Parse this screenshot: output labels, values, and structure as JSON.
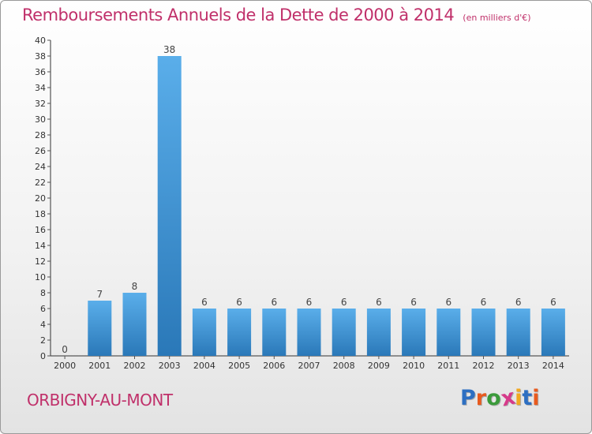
{
  "header": {
    "title": "Remboursements Annuels de la Dette de 2000 à 2014",
    "subtitle": "(en milliers d'€)"
  },
  "footer": {
    "commune": "ORBIGNY-AU-MONT",
    "logo_text": "Proxiti",
    "logo_colors": [
      "#2d6fc2",
      "#e85a1e",
      "#3a9a3a",
      "#d63a8a",
      "#f1a820",
      "#2d6fc2",
      "#e85a1e"
    ]
  },
  "colors": {
    "accent": "#c0306a",
    "bar_light": "#5aaeea",
    "bar_dark": "#2a78b8",
    "axis": "#333333",
    "grid_tick": "#555555"
  },
  "chart_data": {
    "type": "bar",
    "categories": [
      "2000",
      "2001",
      "2002",
      "2003",
      "2004",
      "2005",
      "2006",
      "2007",
      "2008",
      "2009",
      "2010",
      "2011",
      "2012",
      "2013",
      "2014"
    ],
    "values": [
      0,
      7,
      8,
      38,
      6,
      6,
      6,
      6,
      6,
      6,
      6,
      6,
      6,
      6,
      6
    ],
    "data_labels": [
      "0",
      "7",
      "8",
      "38",
      "6",
      "6",
      "6",
      "6",
      "6",
      "6",
      "6",
      "6",
      "6",
      "6",
      "6"
    ],
    "ylim": [
      0,
      40
    ],
    "yticks": [
      0,
      2,
      4,
      6,
      8,
      10,
      12,
      14,
      16,
      18,
      20,
      22,
      24,
      26,
      28,
      30,
      32,
      34,
      36,
      38,
      40
    ],
    "grid": false,
    "legend": "none"
  }
}
